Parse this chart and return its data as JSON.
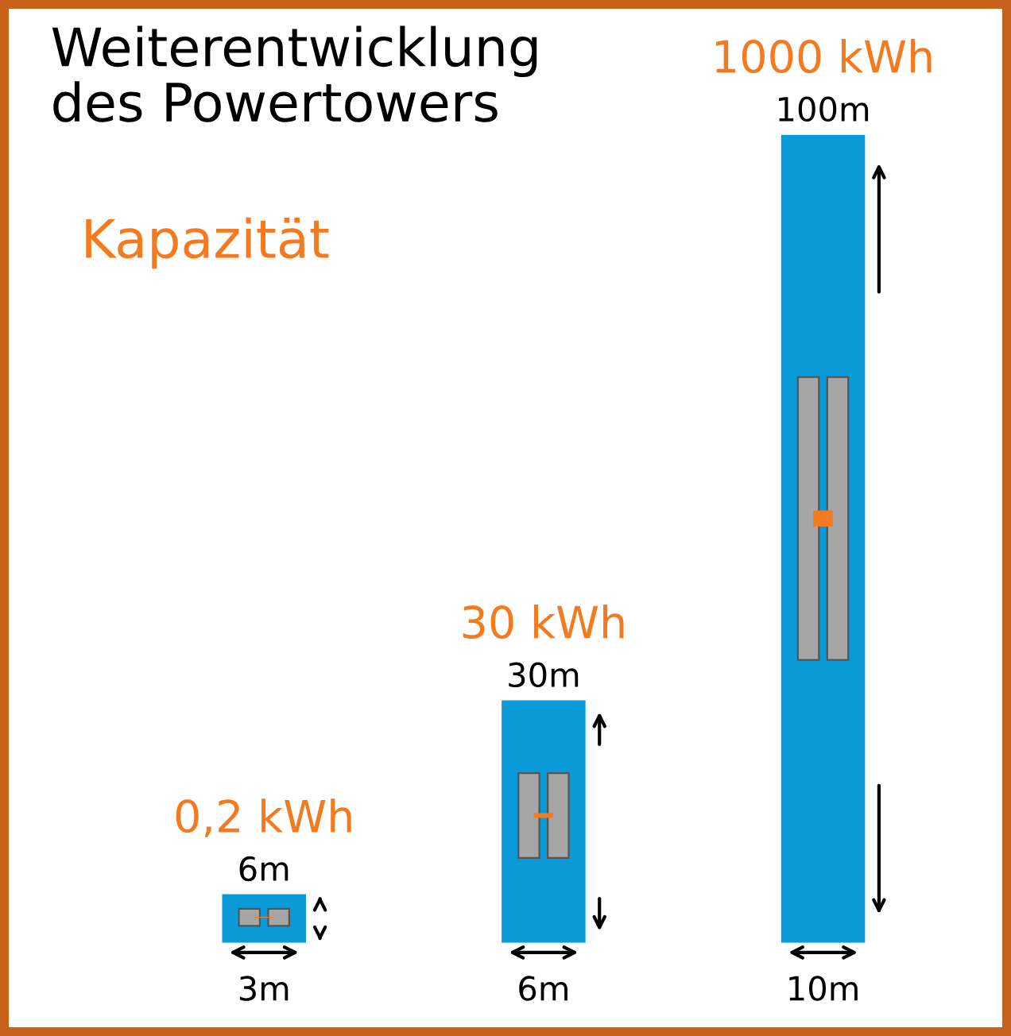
{
  "chart_data": {
    "type": "bar",
    "title": "Weiterentwicklung\ndes Powertowers",
    "subtitle": "Kapazität",
    "categories": [
      null,
      null,
      null
    ],
    "values": [
      6,
      30,
      100
    ],
    "color": "#0a9ad8",
    "value_labels": [
      "6m",
      "30m",
      "100m"
    ],
    "annotations": [
      "0,2 kWh",
      "3m",
      "30 kWh",
      "6m",
      "1000 kWh",
      "10m"
    ]
  }
}
